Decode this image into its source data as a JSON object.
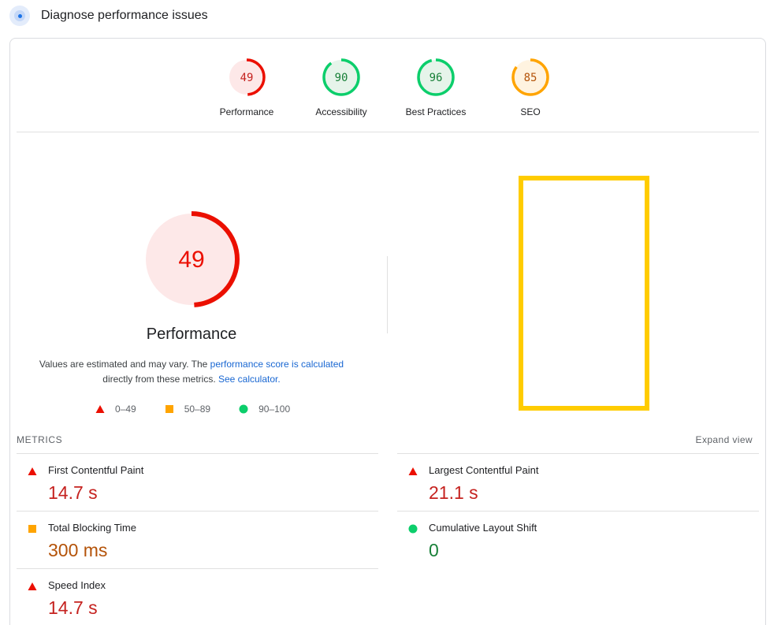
{
  "header": {
    "title": "Diagnose performance issues",
    "icon": "lighthouse-icon"
  },
  "summary": [
    {
      "label": "Performance",
      "score": "49",
      "value": 49,
      "status": "fail",
      "color": "#eb0f00",
      "bg": "#fde8e8"
    },
    {
      "label": "Accessibility",
      "score": "90",
      "value": 90,
      "status": "pass",
      "color": "#0cce6b",
      "bg": "#e6f4ea"
    },
    {
      "label": "Best Practices",
      "score": "96",
      "value": 96,
      "status": "pass",
      "color": "#0cce6b",
      "bg": "#e6f4ea"
    },
    {
      "label": "SEO",
      "score": "85",
      "value": 85,
      "status": "average",
      "color": "#ffa400",
      "bg": "#fff3e0"
    }
  ],
  "main_gauge": {
    "score": "49",
    "value": 49,
    "title": "Performance",
    "color": "#eb0f00",
    "bg": "#fde8e8"
  },
  "note": {
    "text1": "Values are estimated and may vary. The ",
    "link1": "performance score is calculated",
    "text2": "directly from these metrics. ",
    "link2": "See calculator."
  },
  "legend": [
    {
      "range": "0–49",
      "shape": "triangle",
      "color": "#eb0f00"
    },
    {
      "range": "50–89",
      "shape": "square",
      "color": "#ffa400"
    },
    {
      "range": "90–100",
      "shape": "circle",
      "color": "#0cce6b"
    }
  ],
  "metrics": {
    "header": "METRICS",
    "expand_label": "Expand view",
    "left": [
      {
        "title": "First Contentful Paint",
        "value": "14.7 s",
        "status": "fail"
      },
      {
        "title": "Total Blocking Time",
        "value": "300 ms",
        "status": "average"
      },
      {
        "title": "Speed Index",
        "value": "14.7 s",
        "status": "fail"
      }
    ],
    "right": [
      {
        "title": "Largest Contentful Paint",
        "value": "21.1 s",
        "status": "fail"
      },
      {
        "title": "Cumulative Layout Shift",
        "value": "0",
        "status": "pass"
      }
    ]
  }
}
